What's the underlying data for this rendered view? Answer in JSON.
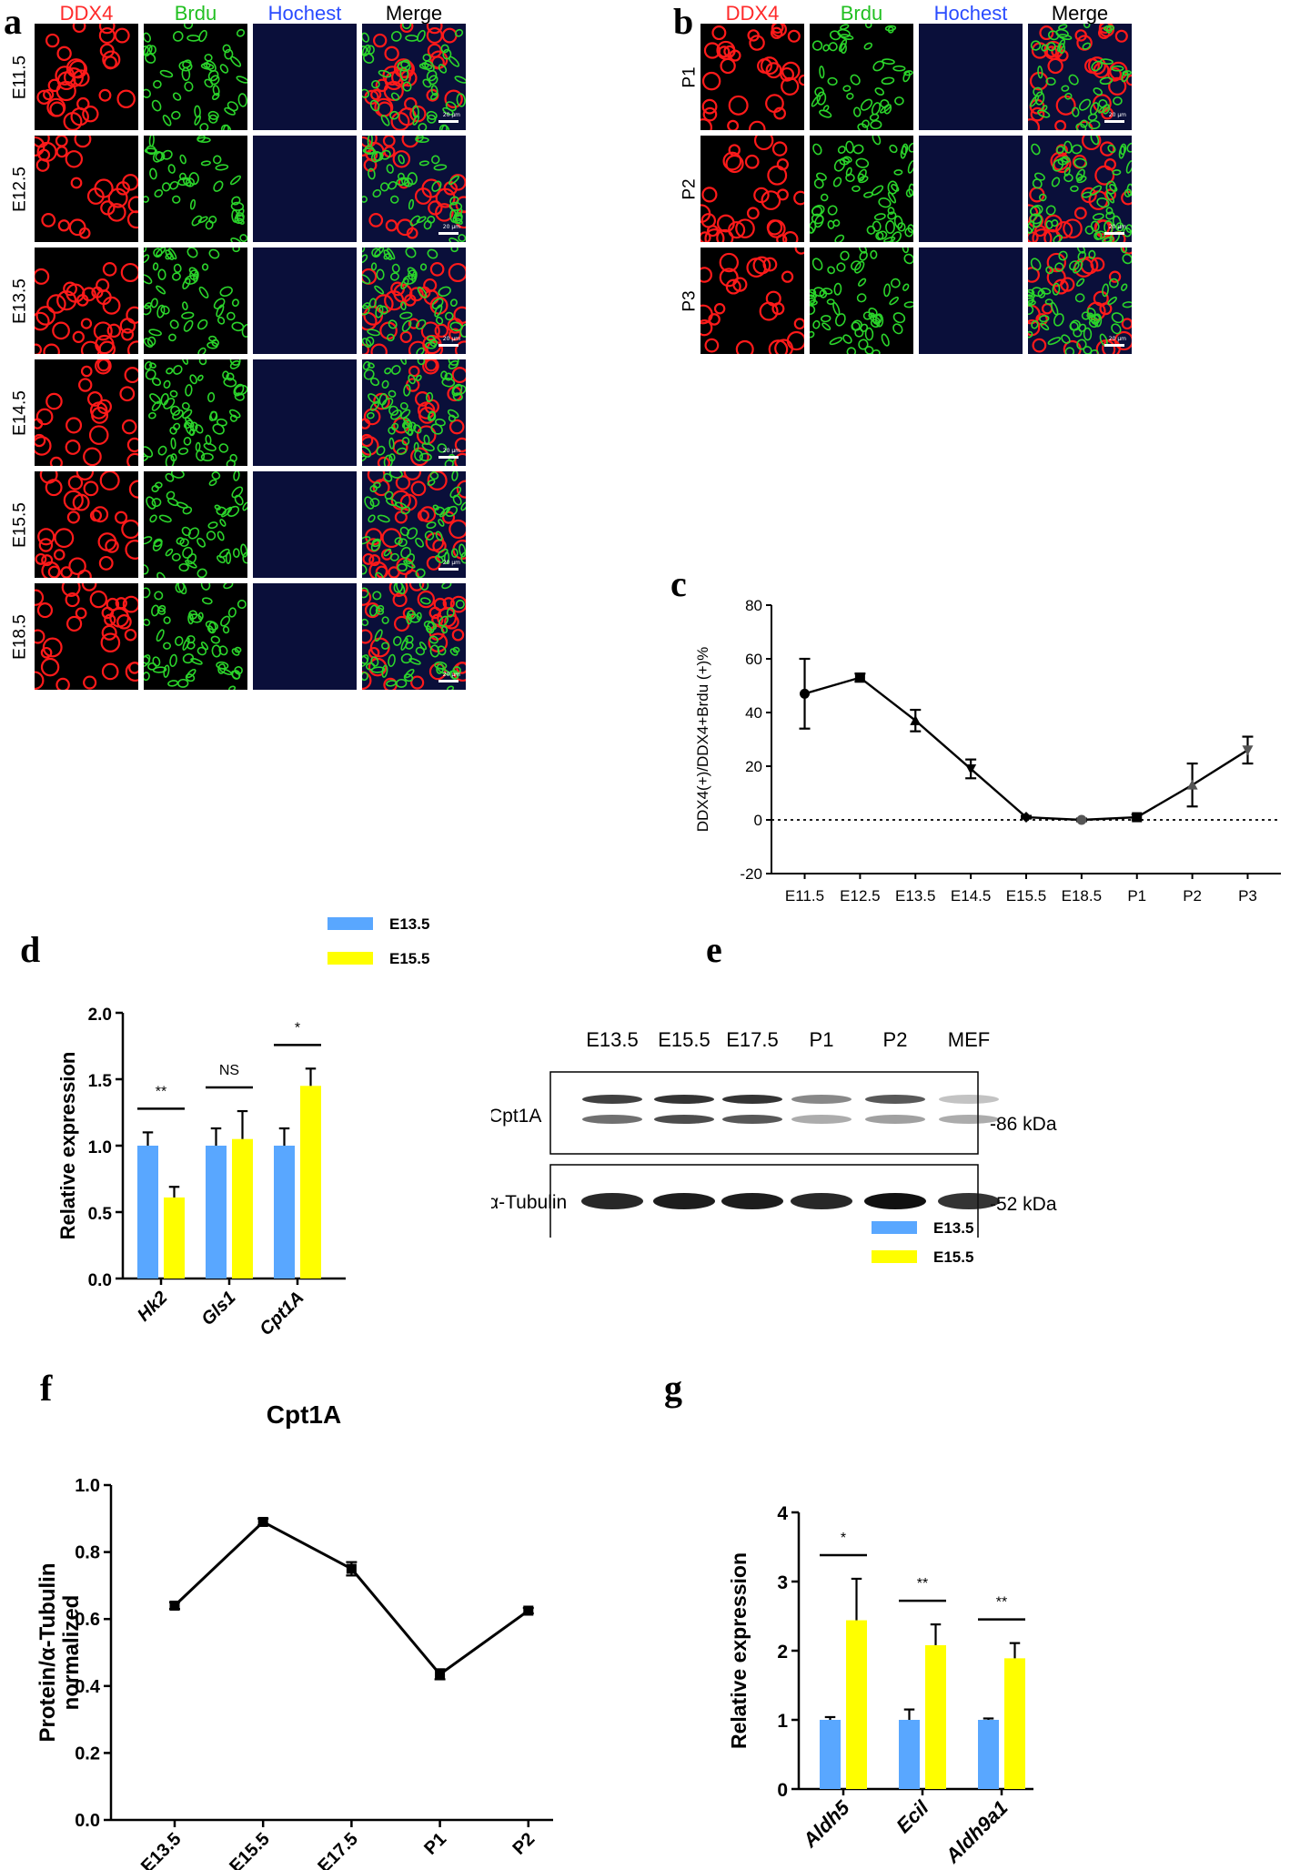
{
  "panels": {
    "a": {
      "letter": "a",
      "columns": [
        {
          "label": "DDX4",
          "color": "#ff2a2a"
        },
        {
          "label": "Brdu",
          "color": "#22c022"
        },
        {
          "label": "Hochest",
          "color": "#2a4cff"
        },
        {
          "label": "Merge",
          "color": "#000000"
        }
      ],
      "rows": [
        "E11.5",
        "E12.5",
        "E13.5",
        "E14.5",
        "E15.5",
        "E18.5"
      ]
    },
    "b": {
      "letter": "b",
      "columns": [
        {
          "label": "DDX4",
          "color": "#ff2a2a"
        },
        {
          "label": "Brdu",
          "color": "#22c022"
        },
        {
          "label": "Hochest",
          "color": "#2a4cff"
        },
        {
          "label": "Merge",
          "color": "#000000"
        }
      ],
      "rows": [
        "P1",
        "P2",
        "P3"
      ]
    },
    "c": {
      "letter": "c"
    },
    "d": {
      "letter": "d"
    },
    "e": {
      "letter": "e",
      "lanes": [
        "E13.5",
        "E15.5",
        "E17.5",
        "P1",
        "P2",
        "MEF"
      ],
      "bands": [
        {
          "name": "Cpt1A",
          "size": "-86 kDa"
        },
        {
          "name": "α-Tubulin",
          "size": "-52 kDa"
        }
      ]
    },
    "f": {
      "letter": "f"
    },
    "g": {
      "letter": "g"
    }
  },
  "scale_label": "20 μm",
  "chart_data": [
    {
      "id": "c",
      "type": "line",
      "categories": [
        "E11.5",
        "E12.5",
        "E13.5",
        "E14.5",
        "E15.5",
        "E18.5",
        "P1",
        "P2",
        "P3"
      ],
      "values": [
        47,
        53,
        37,
        19,
        1,
        0,
        1,
        13,
        26
      ],
      "errors": [
        13,
        1.5,
        4,
        3.5,
        0.5,
        0.5,
        1,
        8,
        5
      ],
      "markers": [
        "circle",
        "square",
        "triangle",
        "triangle-down",
        "diamond",
        "circle",
        "square",
        "triangle",
        "triangle-down"
      ],
      "ylabel": "DDX4(+)/DDX4+Brdu (+)%",
      "xlabel": "",
      "ylim": [
        -20,
        80
      ],
      "yticks": [
        -20,
        0,
        20,
        40,
        60,
        80
      ],
      "reference_line": 0
    },
    {
      "id": "d",
      "type": "bar",
      "categories": [
        "Hk2",
        "Gls1",
        "Cpt1A"
      ],
      "series": [
        {
          "name": "E13.5",
          "color": "#59a7ff",
          "values": [
            1.0,
            1.0,
            1.0
          ],
          "errors": [
            0.1,
            0.13,
            0.13
          ]
        },
        {
          "name": "E15.5",
          "color": "#ffff00",
          "values": [
            0.61,
            1.05,
            1.45
          ],
          "errors": [
            0.08,
            0.21,
            0.13
          ]
        }
      ],
      "significance": [
        "**",
        "NS",
        "*"
      ],
      "ylabel": "Relative expression",
      "ylim": [
        0,
        2.0
      ],
      "yticks": [
        "0.0",
        "0.5",
        "1.0",
        "1.5",
        "2.0"
      ],
      "legend": "top-right"
    },
    {
      "id": "f",
      "type": "line",
      "title": "Cpt1A",
      "categories": [
        "E13.5",
        "E15.5",
        "E17.5",
        "P1",
        "P2"
      ],
      "values": [
        0.64,
        0.89,
        0.75,
        0.435,
        0.625
      ],
      "errors": [
        0.01,
        0.01,
        0.02,
        0.015,
        0.008
      ],
      "ylabel": "Protein/α-Tubulin normalized",
      "ylabel_lines": [
        "Protein/α-Tubulin",
        "normalized"
      ],
      "ylim": [
        0,
        1.0
      ],
      "yticks": [
        "0.0",
        "0.2",
        "0.4",
        "0.6",
        "0.8",
        "1.0"
      ]
    },
    {
      "id": "g",
      "type": "bar",
      "categories": [
        "Aldh5",
        "Ecil",
        "Aldh9a1"
      ],
      "series": [
        {
          "name": "E13.5",
          "color": "#59a7ff",
          "values": [
            1.0,
            1.0,
            1.0
          ],
          "errors": [
            0.04,
            0.15,
            0.02
          ]
        },
        {
          "name": "E15.5",
          "color": "#ffff00",
          "values": [
            2.44,
            2.08,
            1.89
          ],
          "errors": [
            0.6,
            0.3,
            0.22
          ]
        }
      ],
      "significance": [
        "*",
        "**",
        "**"
      ],
      "ylabel": "Relative expression",
      "ylim": [
        0,
        4
      ],
      "yticks": [
        "0",
        "1",
        "2",
        "3",
        "4"
      ],
      "legend": "top-right"
    }
  ]
}
